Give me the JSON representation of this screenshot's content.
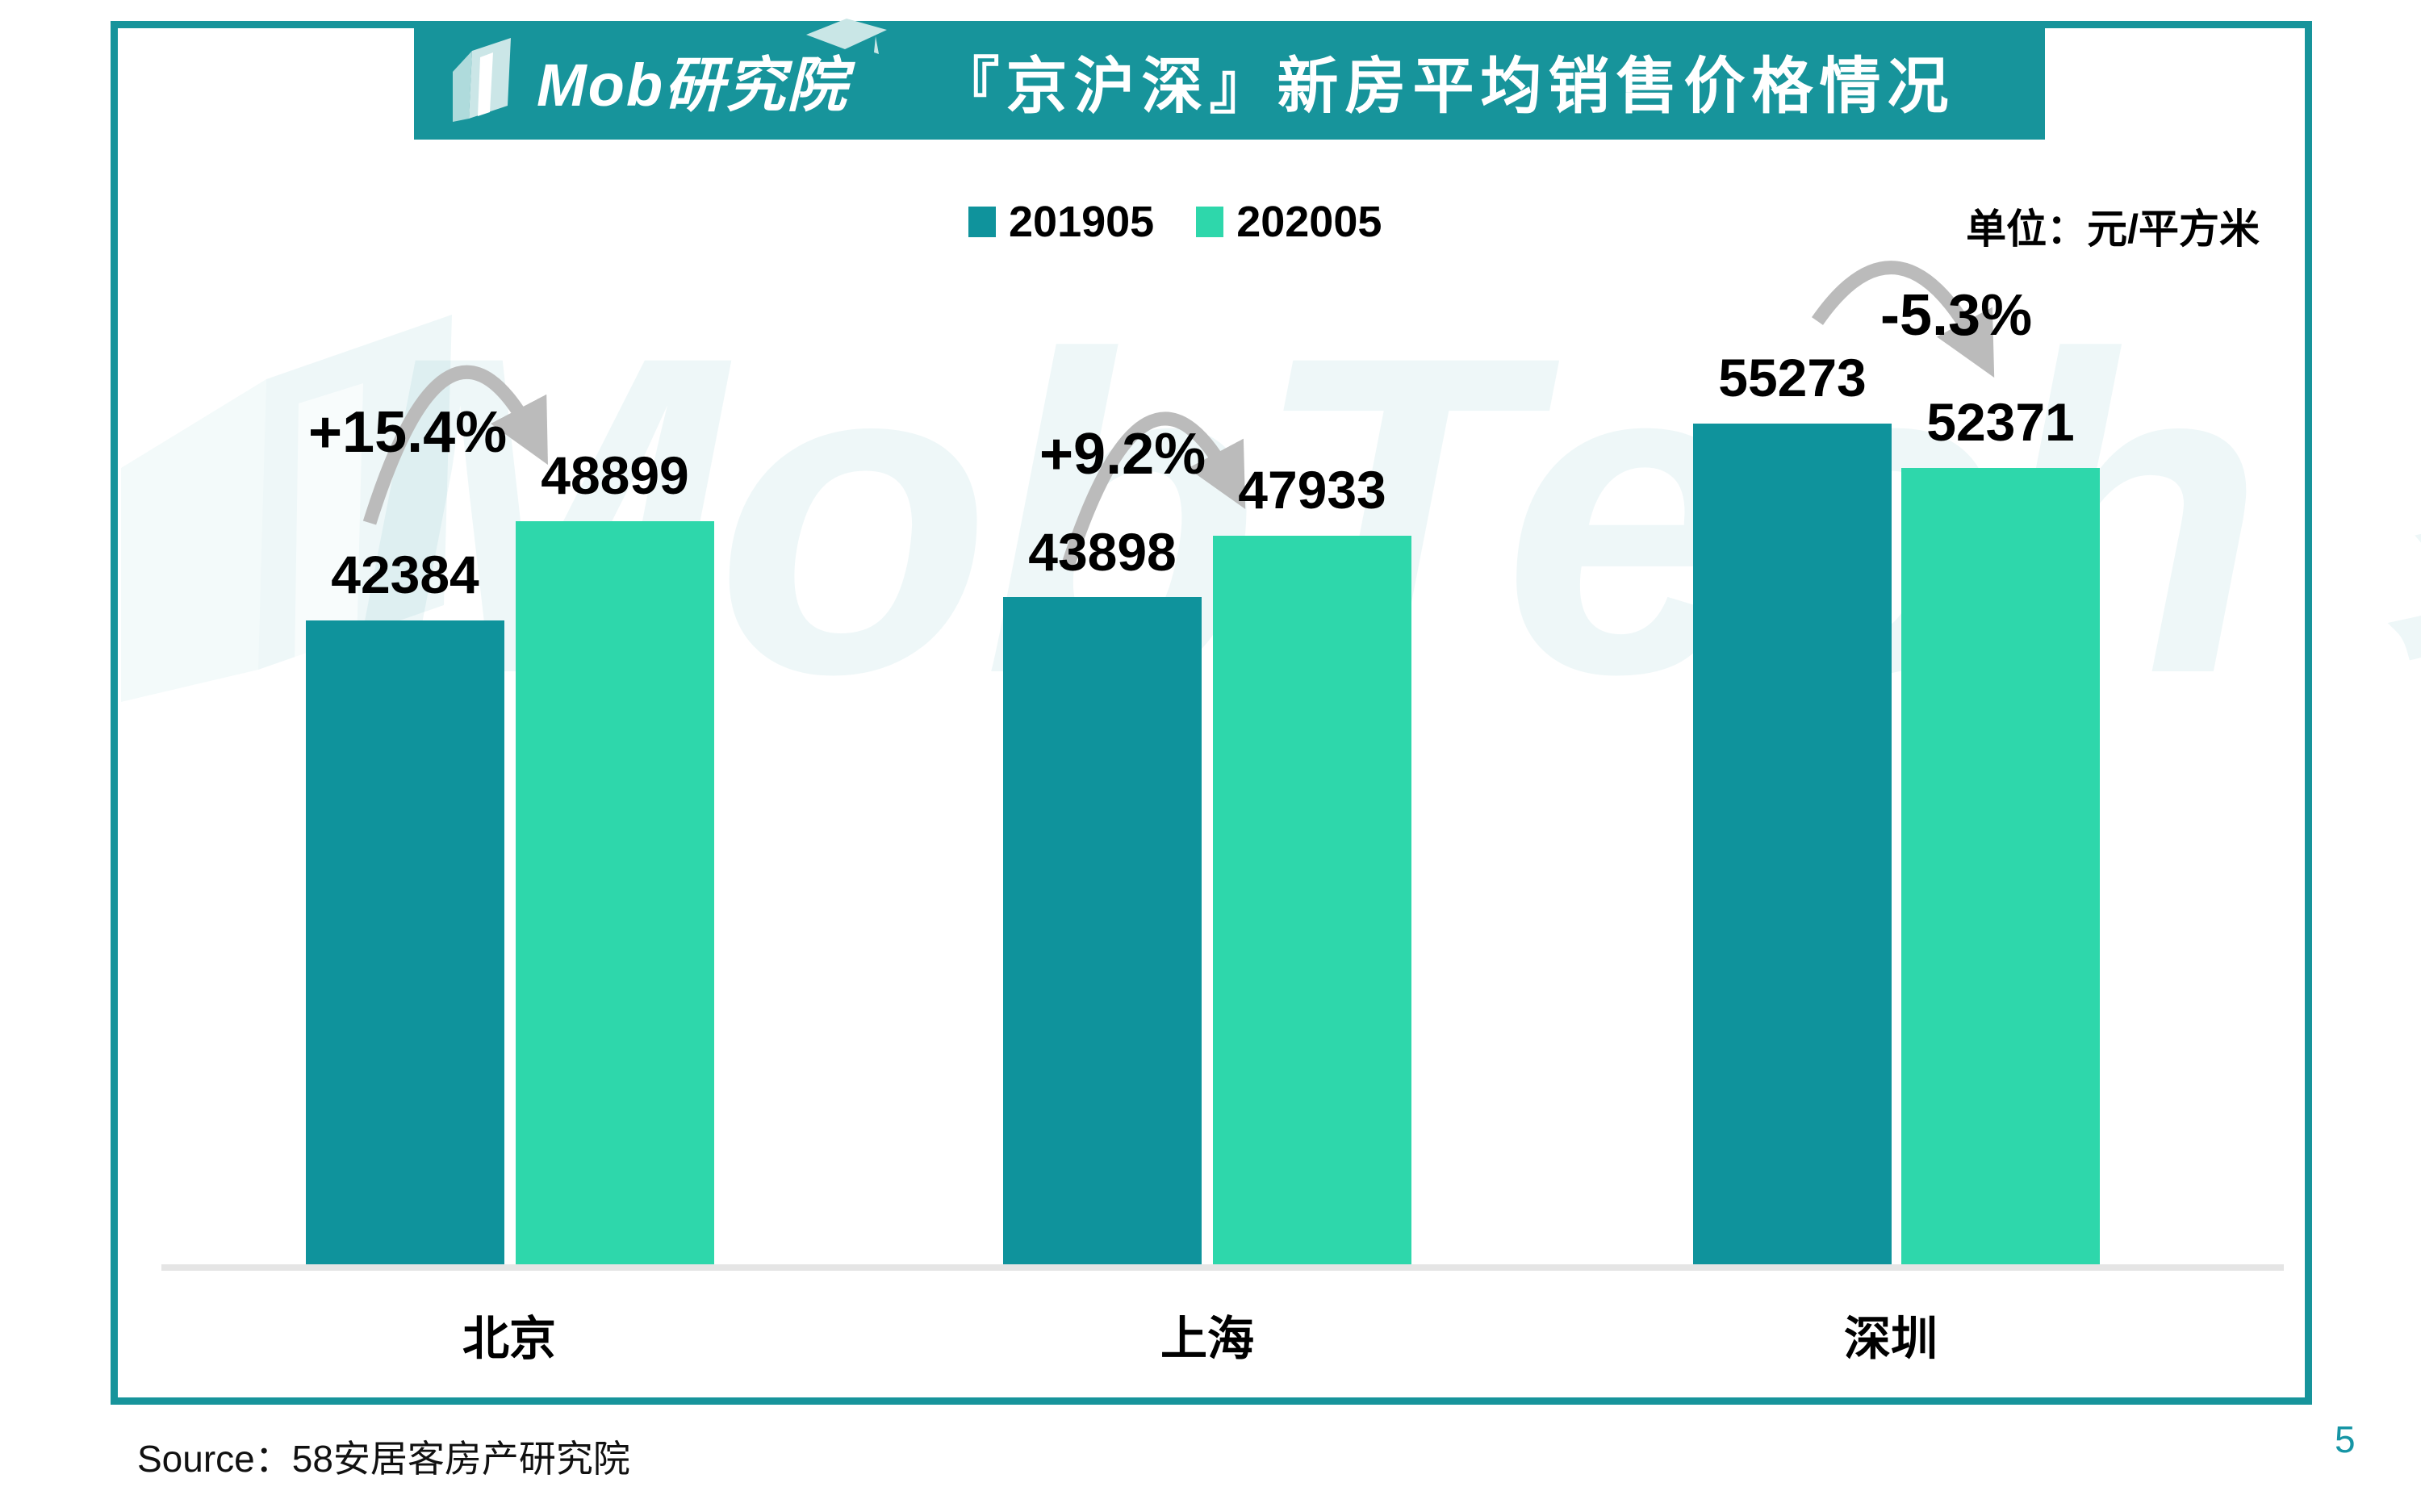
{
  "header": {
    "logo_text": "Mob研究院",
    "title": "『京沪深』新房平均销售价格情况"
  },
  "unit_label": "单位：元/平方米",
  "chart_data": {
    "type": "bar",
    "title": "『京沪深』新房平均销售价格情况",
    "unit": "元/平方米",
    "categories": [
      "北京",
      "上海",
      "深圳"
    ],
    "series": [
      {
        "name": "201905",
        "color": "#0F939C",
        "values": [
          42384,
          43898,
          55273
        ]
      },
      {
        "name": "202005",
        "color": "#2ED7AB",
        "values": [
          48899,
          47933,
          52371
        ]
      }
    ],
    "change_labels": [
      "+15.4%",
      "+9.2%",
      "-5.3%"
    ],
    "ylim": [
      0,
      57000
    ],
    "grid": false,
    "legend_position": "top",
    "xlabel": "",
    "ylabel": "元/平方米"
  },
  "watermark": {
    "text": "MobTech 袤博"
  },
  "footer": {
    "source": "Source：58安居客房产研究院",
    "page_number": "5"
  },
  "colors": {
    "teal": "#0F939C",
    "mint": "#2ED7AB",
    "banner": "#17949B",
    "arrow": "#BBBBBB",
    "baseline": "#E5E5E5",
    "page_number": "#1695A5"
  }
}
